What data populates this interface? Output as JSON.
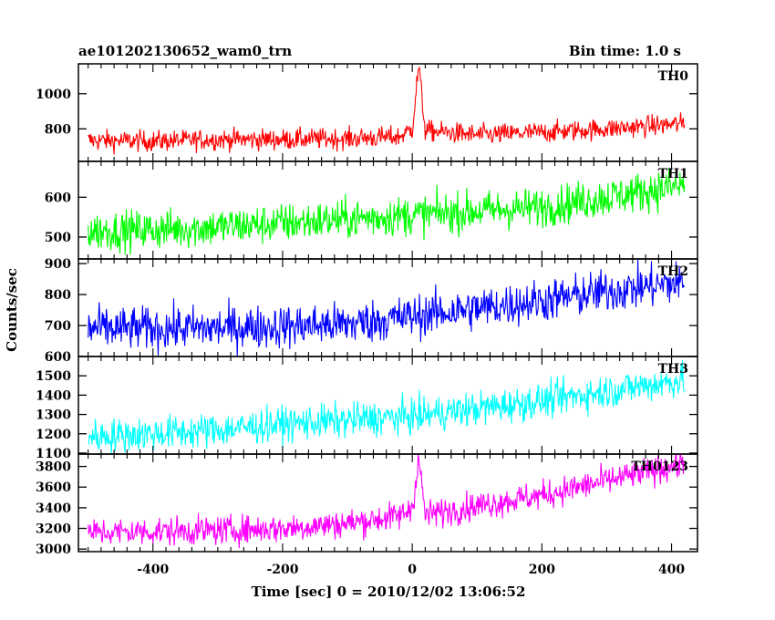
{
  "header": {
    "title": "ae101202130652_wam0_trn",
    "bin_time": "Bin time: 1.0 s"
  },
  "axes": {
    "xlabel": "Time [sec] 0 = 2010/12/02 13:06:52",
    "ylabel": "Counts/sec",
    "xlim": [
      -515,
      440
    ],
    "xticks": [
      -400,
      -200,
      0,
      200,
      400
    ]
  },
  "chart_data": {
    "type": "line",
    "x_range": [
      -500,
      420
    ],
    "series": [
      {
        "name": "TH0",
        "color": "#ff0000",
        "ylim": [
          615,
          1170
        ],
        "yticks": [
          800,
          1000
        ],
        "base_start": 735,
        "base_end": 800,
        "noise": 30,
        "flare_peak": 1160,
        "points": [
          [
            -500,
            735
          ],
          [
            -400,
            730
          ],
          [
            -300,
            740
          ],
          [
            -200,
            740
          ],
          [
            -100,
            745
          ],
          [
            -20,
            755
          ],
          [
            0,
            800
          ],
          [
            10,
            1160
          ],
          [
            20,
            790
          ],
          [
            100,
            765
          ],
          [
            200,
            780
          ],
          [
            300,
            800
          ],
          [
            420,
            830
          ]
        ]
      },
      {
        "name": "TH1",
        "color": "#00ff00",
        "ylim": [
          445,
          690
        ],
        "yticks": [
          500,
          600
        ],
        "base_start": 515,
        "base_end": 630,
        "noise": 25,
        "points": [
          [
            -500,
            515
          ],
          [
            -400,
            518
          ],
          [
            -300,
            525
          ],
          [
            -200,
            535
          ],
          [
            -100,
            545
          ],
          [
            0,
            555
          ],
          [
            100,
            565
          ],
          [
            200,
            575
          ],
          [
            300,
            600
          ],
          [
            420,
            630
          ]
        ]
      },
      {
        "name": "TH2",
        "color": "#0000ff",
        "ylim": [
          600,
          915
        ],
        "yticks": [
          600,
          700,
          800,
          900
        ],
        "base_start": 690,
        "base_end": 840,
        "noise": 35,
        "points": [
          [
            -500,
            690
          ],
          [
            -400,
            690
          ],
          [
            -300,
            692
          ],
          [
            -200,
            697
          ],
          [
            -100,
            705
          ],
          [
            0,
            730
          ],
          [
            100,
            755
          ],
          [
            200,
            780
          ],
          [
            300,
            810
          ],
          [
            420,
            840
          ]
        ]
      },
      {
        "name": "TH3",
        "color": "#00ffff",
        "ylim": [
          1095,
          1600
        ],
        "yticks": [
          1100,
          1200,
          1300,
          1400,
          1500
        ],
        "base_start": 1185,
        "base_end": 1480,
        "noise": 45,
        "points": [
          [
            -500,
            1185
          ],
          [
            -400,
            1200
          ],
          [
            -300,
            1220
          ],
          [
            -200,
            1250
          ],
          [
            -100,
            1270
          ],
          [
            0,
            1290
          ],
          [
            100,
            1330
          ],
          [
            200,
            1370
          ],
          [
            300,
            1420
          ],
          [
            420,
            1480
          ]
        ]
      },
      {
        "name": "TH0123",
        "color": "#ff00ff",
        "ylim": [
          2975,
          3920
        ],
        "yticks": [
          3000,
          3200,
          3400,
          3600,
          3800
        ],
        "base_start": 3160,
        "base_end": 3830,
        "noise": 70,
        "flare_peak": 3880,
        "points": [
          [
            -500,
            3160
          ],
          [
            -400,
            3170
          ],
          [
            -300,
            3180
          ],
          [
            -200,
            3200
          ],
          [
            -100,
            3250
          ],
          [
            -20,
            3320
          ],
          [
            0,
            3400
          ],
          [
            10,
            3880
          ],
          [
            20,
            3330
          ],
          [
            100,
            3420
          ],
          [
            200,
            3520
          ],
          [
            300,
            3660
          ],
          [
            420,
            3830
          ]
        ]
      }
    ]
  }
}
